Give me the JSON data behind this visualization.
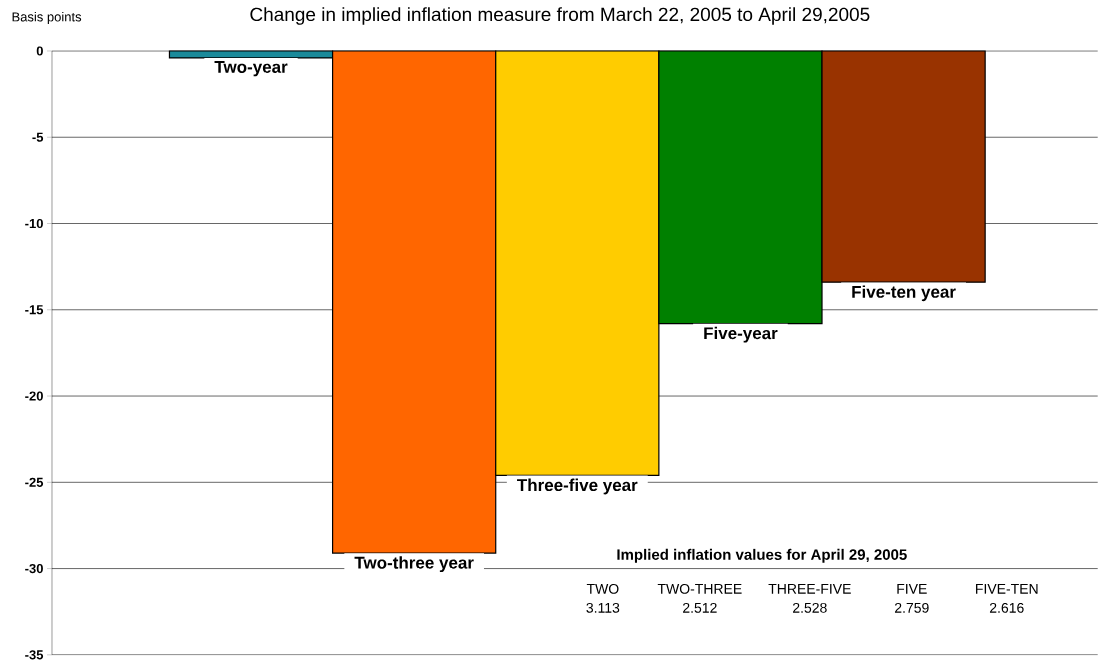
{
  "chart_data": {
    "type": "bar",
    "title": "Change in implied inflation measure from March 22, 2005 to April 29,2005",
    "ylabel": "Basis points",
    "categories": [
      "Two-year",
      "Two-three year",
      "Three-five year",
      "Five-year",
      "Five-ten year"
    ],
    "values": [
      -0.4,
      -29.1,
      -24.6,
      -15.8,
      -13.4
    ],
    "colors": [
      "#1a8a9a",
      "#ff6600",
      "#ffcc00",
      "#008000",
      "#993300"
    ],
    "ylim": [
      -35,
      0
    ],
    "yticks": [
      -35,
      -30,
      -25,
      -20,
      -15,
      -10,
      -5,
      0
    ],
    "grid": "y",
    "annotations": [
      "Implied inflation values for April 29, 2005",
      "TWO",
      "TWO-THREE",
      "THREE-FIVE",
      "FIVE",
      "FIVE-TEN",
      "3.113",
      "2.512",
      "2.528",
      "2.759",
      "2.616"
    ]
  }
}
